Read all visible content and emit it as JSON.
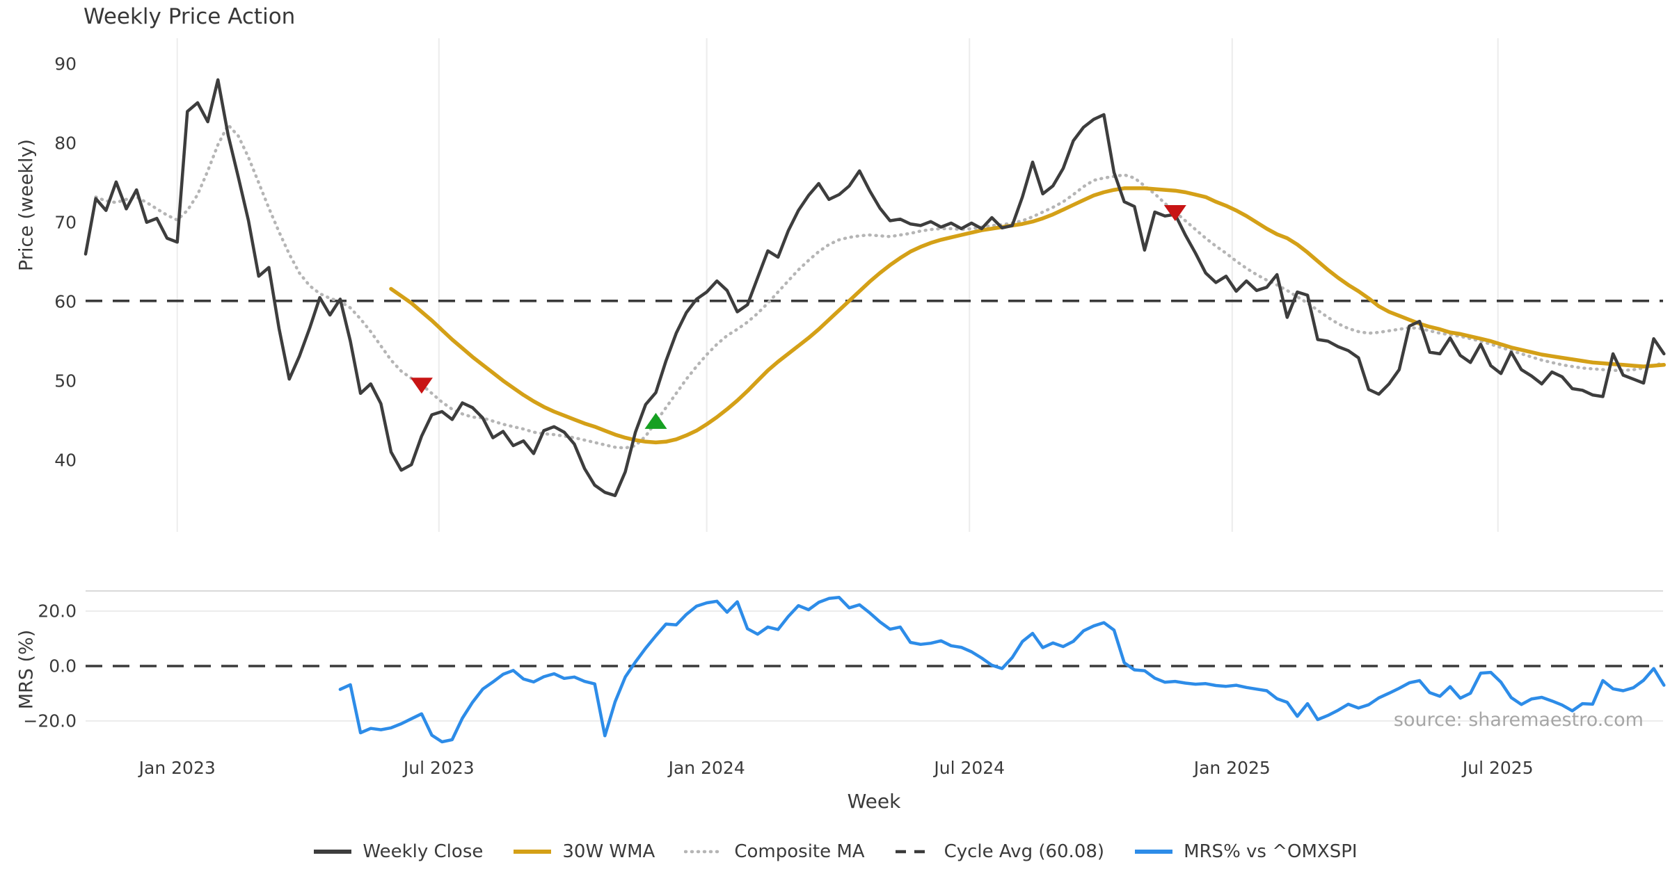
{
  "title": "Weekly Price Action",
  "source": "source: sharemaestro.com",
  "colors": {
    "close": "#3d3d3d",
    "wma": "#d4a017",
    "composite": "#b5b5b5",
    "cycle": "#3a3a3a",
    "mrs": "#2d8ce8",
    "sell": "#c81414",
    "buy": "#16a022",
    "grid": "#ececec",
    "spine": "#d9d9d9",
    "text": "#3a3a3a",
    "muted": "#a6a6a6"
  },
  "price_axis": {
    "label": "Price (weekly)",
    "ticks": [
      90,
      80,
      70,
      60,
      50,
      40
    ]
  },
  "mrs_axis": {
    "label": "MRS (%)",
    "ticks": [
      {
        "label": "20.0",
        "value": 20
      },
      {
        "label": "0.0",
        "value": 0
      },
      {
        "label": "−20.0",
        "value": -20
      }
    ]
  },
  "x_axis": {
    "label": "Week",
    "ticks": [
      {
        "label": "Jan 2023",
        "week": 9
      },
      {
        "label": "Jul 2023",
        "week": 34.7
      },
      {
        "label": "Jan 2024",
        "week": 61
      },
      {
        "label": "Jul 2024",
        "week": 86.8
      },
      {
        "label": "Jan 2025",
        "week": 112.6
      },
      {
        "label": "Jul 2025",
        "week": 138.7
      }
    ]
  },
  "legend": [
    {
      "label": "Weekly Close",
      "style": "solid",
      "color_key": "close"
    },
    {
      "label": "30W WMA",
      "style": "solid",
      "color_key": "wma"
    },
    {
      "label": "Composite MA",
      "style": "dotted",
      "color_key": "composite"
    },
    {
      "label": "Cycle Avg (60.08)",
      "style": "dashed",
      "color_key": "cycle"
    },
    {
      "label": "MRS% vs ^OMXSPI",
      "style": "solid",
      "color_key": "mrs"
    }
  ],
  "chart_data": {
    "type": "line",
    "x_unit": "week_index",
    "weeks_total": 156,
    "panels": [
      {
        "id": "price",
        "ylabel": "Price (weekly)",
        "ylim": [
          30.9,
          93.2
        ],
        "grid": "vertical-only",
        "cycle_avg": {
          "label": "Cycle Avg (60.08)",
          "value": 60.08
        },
        "series": [
          {
            "name": "Weekly Close",
            "color_key": "close",
            "start_week": 0,
            "values": [
              66.0,
              73.0,
              71.5,
              75.1,
              71.7,
              74.1,
              70.0,
              70.5,
              68.0,
              67.5,
              84.0,
              85.1,
              82.7,
              88.0,
              81.0,
              75.7,
              70.2,
              63.2,
              64.3,
              56.6,
              50.2,
              53.1,
              56.6,
              60.5,
              58.3,
              60.3,
              55.0,
              48.4,
              49.6,
              47.1,
              41.0,
              38.7,
              39.4,
              43.0,
              45.7,
              46.1,
              45.1,
              47.2,
              46.6,
              45.3,
              42.8,
              43.6,
              41.8,
              42.4,
              40.8,
              43.7,
              44.2,
              43.5,
              42.0,
              38.9,
              36.8,
              35.9,
              35.5,
              38.5,
              43.5,
              47.0,
              48.5,
              52.5,
              56.0,
              58.6,
              60.3,
              61.2,
              62.6,
              61.4,
              58.7,
              59.6,
              63.0,
              66.4,
              65.6,
              68.9,
              71.5,
              73.4,
              74.9,
              72.9,
              73.5,
              74.6,
              76.5,
              74.0,
              71.8,
              70.2,
              70.4,
              69.8,
              69.6,
              70.1,
              69.4,
              69.9,
              69.2,
              69.9,
              69.2,
              70.6,
              69.3,
              69.6,
              73.2,
              77.6,
              73.6,
              74.6,
              76.8,
              80.3,
              82.0,
              83.0,
              83.6,
              76.3,
              72.6,
              72.0,
              66.5,
              71.3,
              70.8,
              71.0,
              68.4,
              66.1,
              63.6,
              62.4,
              63.2,
              61.3,
              62.6,
              61.4,
              61.8,
              63.4,
              58.0,
              61.2,
              60.8,
              55.2,
              55.0,
              54.3,
              53.8,
              52.9,
              48.9,
              48.3,
              49.6,
              51.4,
              56.9,
              57.5,
              53.6,
              53.4,
              55.4,
              53.2,
              52.3,
              54.6,
              51.9,
              50.9,
              53.6,
              51.4,
              50.6,
              49.6,
              51.1,
              50.5,
              49.0,
              48.8,
              48.2,
              48.0,
              53.4,
              50.7,
              50.2,
              49.7,
              55.3,
              53.4
            ]
          },
          {
            "name": "30W WMA",
            "color_key": "wma",
            "start_week": 30,
            "values": [
              61.6,
              60.7,
              59.8,
              58.7,
              57.6,
              56.4,
              55.2,
              54.1,
              53.0,
              52.0,
              51.0,
              50.0,
              49.1,
              48.2,
              47.4,
              46.7,
              46.1,
              45.6,
              45.1,
              44.6,
              44.2,
              43.7,
              43.2,
              42.8,
              42.5,
              42.3,
              42.2,
              42.3,
              42.6,
              43.1,
              43.7,
              44.5,
              45.4,
              46.4,
              47.5,
              48.7,
              50.0,
              51.3,
              52.4,
              53.4,
              54.4,
              55.4,
              56.5,
              57.7,
              58.9,
              60.1,
              61.3,
              62.5,
              63.6,
              64.6,
              65.5,
              66.3,
              66.9,
              67.4,
              67.8,
              68.1,
              68.4,
              68.7,
              69.0,
              69.2,
              69.4,
              69.6,
              69.8,
              70.1,
              70.5,
              71.0,
              71.6,
              72.2,
              72.8,
              73.4,
              73.8,
              74.1,
              74.3,
              74.3,
              74.3,
              74.2,
              74.1,
              74.0,
              73.8,
              73.5,
              73.2,
              72.6,
              72.1,
              71.5,
              70.8,
              70.0,
              69.2,
              68.5,
              68.0,
              67.2,
              66.2,
              65.1,
              64.0,
              63.0,
              62.1,
              61.3,
              60.4,
              59.4,
              58.7,
              58.2,
              57.7,
              57.2,
              56.8,
              56.5,
              56.1,
              55.9,
              55.6,
              55.3,
              55.0,
              54.6,
              54.2,
              53.9,
              53.6,
              53.3,
              53.1,
              52.9,
              52.7,
              52.5,
              52.3,
              52.2,
              52.1,
              52.0,
              51.9,
              51.8,
              51.9,
              52.0
            ]
          },
          {
            "name": "Composite MA",
            "color_key": "composite",
            "start_week": 1,
            "values": [
              73.2,
              72.7,
              72.5,
              72.9,
              73.2,
              72.5,
              71.7,
              70.9,
              70.3,
              71.5,
              73.5,
              76.5,
              79.8,
              82.3,
              80.9,
              78.2,
              75.0,
              71.8,
              68.8,
              66.0,
              63.6,
              62.0,
              61.0,
              60.4,
              60.0,
              59.2,
              57.8,
              56.2,
              54.4,
              52.6,
              51.2,
              50.3,
              49.5,
              48.4,
              47.3,
              46.4,
              45.8,
              45.4,
              45.3,
              44.9,
              44.5,
              44.2,
              43.9,
              43.5,
              43.3,
              43.2,
              43.0,
              42.8,
              42.5,
              42.2,
              41.9,
              41.6,
              41.5,
              41.8,
              43.0,
              44.8,
              46.6,
              48.4,
              50.2,
              51.8,
              53.3,
              54.6,
              55.7,
              56.5,
              57.4,
              58.5,
              59.8,
              61.2,
              62.6,
              64.0,
              65.2,
              66.3,
              67.2,
              67.8,
              68.1,
              68.3,
              68.4,
              68.3,
              68.2,
              68.4,
              68.6,
              68.9,
              69.1,
              69.2,
              69.2,
              69.1,
              69.2,
              69.4,
              69.6,
              69.7,
              69.9,
              70.2,
              70.7,
              71.3,
              71.9,
              72.6,
              73.5,
              74.5,
              75.3,
              75.6,
              75.8,
              76.0,
              75.6,
              74.6,
              73.6,
              72.4,
              71.3,
              70.2,
              69.1,
              68.0,
              67.0,
              66.1,
              65.1,
              64.2,
              63.4,
              62.7,
              62.1,
              61.4,
              60.6,
              59.8,
              58.9,
              58.0,
              57.2,
              56.6,
              56.2,
              56.0,
              56.1,
              56.3,
              56.5,
              56.7,
              56.6,
              56.3,
              56.0,
              55.8,
              55.6,
              55.3,
              55.0,
              54.6,
              54.2,
              53.8,
              53.4,
              53.0,
              52.6,
              52.3,
              52.0,
              51.8,
              51.6,
              51.5,
              51.4,
              51.3,
              51.3,
              51.4,
              51.6,
              51.9,
              52.3
            ]
          }
        ],
        "signals": [
          {
            "type": "sell",
            "week": 33,
            "value": 49.5
          },
          {
            "type": "buy",
            "week": 56,
            "value": 44.8
          },
          {
            "type": "sell",
            "week": 107,
            "value": 71.3
          }
        ]
      },
      {
        "id": "mrs",
        "ylabel": "MRS (%)",
        "ylim": [
          -30.9,
          27.3
        ],
        "grid": "horizontal-only",
        "zero_line": 0,
        "series": [
          {
            "name": "MRS% vs ^OMXSPI",
            "color_key": "mrs",
            "start_week": 25,
            "values": [
              -8.5,
              -6.8,
              -24.3,
              -22.7,
              -23.2,
              -22.5,
              -21.0,
              -19.2,
              -17.4,
              -25.2,
              -27.6,
              -26.8,
              -19.0,
              -13.2,
              -8.4,
              -5.8,
              -3.0,
              -1.6,
              -4.7,
              -5.8,
              -3.9,
              -2.8,
              -4.5,
              -4.0,
              -5.6,
              -6.5,
              -25.4,
              -13.0,
              -4.0,
              1.5,
              6.5,
              11.0,
              15.3,
              15.0,
              18.8,
              21.8,
              23.0,
              23.6,
              19.6,
              23.4,
              13.6,
              11.6,
              14.2,
              13.3,
              18.0,
              22.0,
              20.5,
              23.2,
              24.6,
              25.0,
              21.2,
              22.3,
              19.4,
              16.1,
              13.4,
              14.2,
              8.6,
              7.9,
              8.3,
              9.2,
              7.4,
              6.8,
              5.2,
              2.9,
              0.3,
              -0.9,
              3.1,
              8.9,
              11.9,
              6.7,
              8.4,
              7.1,
              9.0,
              12.8,
              14.6,
              15.8,
              13.1,
              1.2,
              -1.4,
              -1.7,
              -4.4,
              -5.9,
              -5.6,
              -6.2,
              -6.6,
              -6.4,
              -7.1,
              -7.4,
              -7.0,
              -7.8,
              -8.4,
              -9.0,
              -11.9,
              -13.2,
              -18.3,
              -13.7,
              -19.5,
              -18.0,
              -16.1,
              -13.9,
              -15.3,
              -14.1,
              -11.6,
              -9.9,
              -8.1,
              -6.1,
              -5.3,
              -9.7,
              -11.0,
              -7.5,
              -11.7,
              -9.9,
              -2.6,
              -2.3,
              -5.9,
              -11.5,
              -14.0,
              -12.0,
              -11.4,
              -12.7,
              -14.2,
              -16.3,
              -13.7,
              -13.9,
              -5.3,
              -8.3,
              -9.0,
              -7.9,
              -5.2,
              -0.9,
              -7.0
            ]
          }
        ]
      }
    ]
  }
}
